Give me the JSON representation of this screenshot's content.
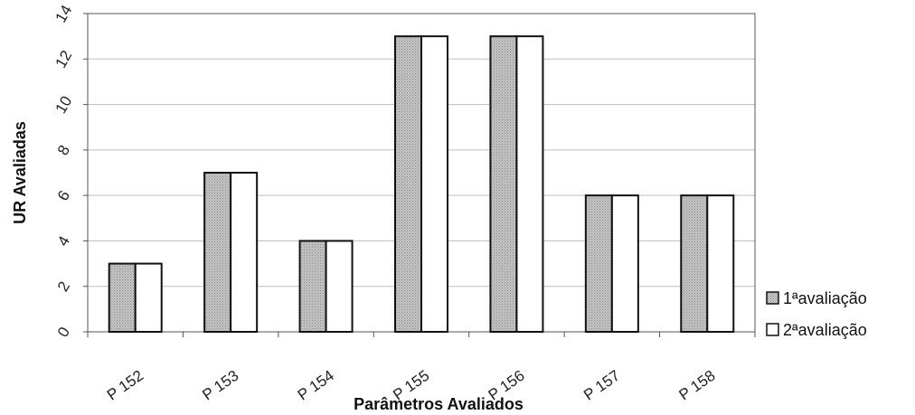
{
  "chart_data": {
    "type": "bar",
    "categories": [
      "P 152",
      "P 153",
      "P 154",
      "P 155",
      "P 156",
      "P 157",
      "P 158"
    ],
    "series": [
      {
        "name": "1ªavaliação",
        "values": [
          3,
          7,
          4,
          13,
          13,
          6,
          6
        ],
        "color": "#bdbdbd"
      },
      {
        "name": "2ªavaliação",
        "values": [
          3,
          7,
          4,
          13,
          13,
          6,
          6
        ],
        "color": "#ffffff"
      }
    ],
    "xlabel": "Parâmetros Avaliados",
    "ylabel": "UR Avaliadas",
    "ylim": [
      0,
      14
    ],
    "yticks": [
      "0",
      "2",
      "4",
      "6",
      "8",
      "10",
      "12",
      "14"
    ],
    "grid": true,
    "legend_position": "right"
  }
}
